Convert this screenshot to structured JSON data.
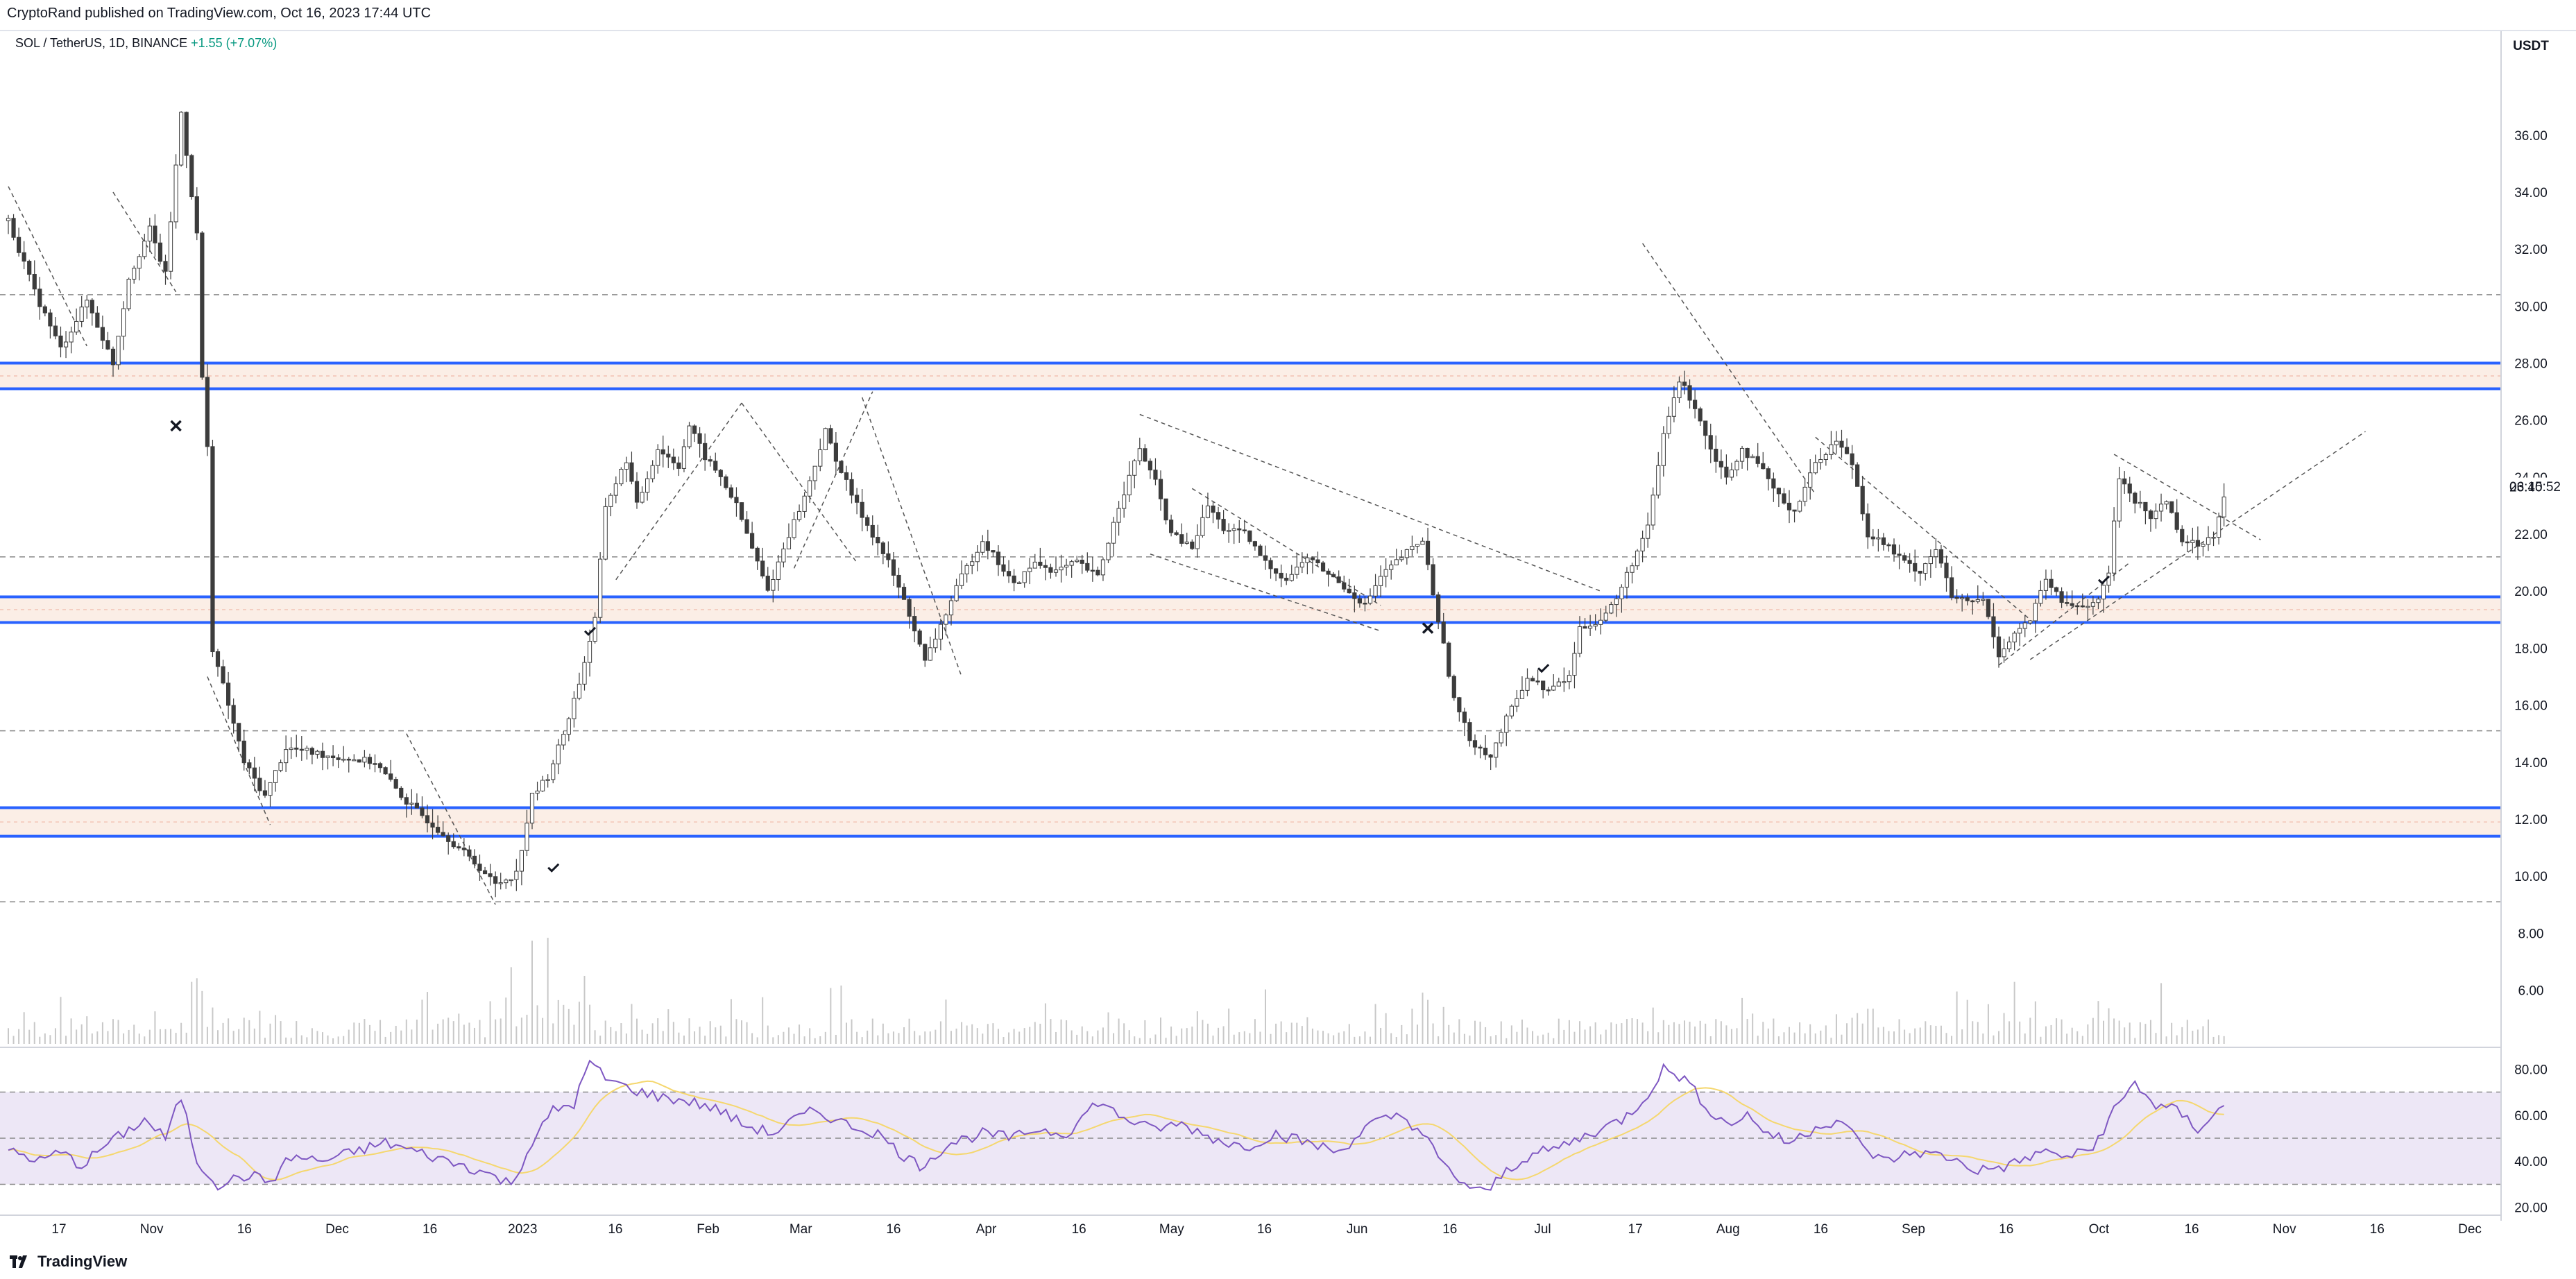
{
  "header": {
    "publish_text": "CryptoRand published on TradingView.com, Oct 16, 2023 17:44 UTC"
  },
  "symbol": {
    "name": "SOL / TetherUS, 1D, BINANCE",
    "change": "+1.55 (+7.07%)"
  },
  "footer": {
    "brand": "TradingView"
  },
  "price_scale": {
    "currency": "USDT",
    "countdown": "06:15:52"
  },
  "colors": {
    "zone_line": "#2962ff",
    "rsi_line": "#7e57c2",
    "rsi_ma": "#f5d76e",
    "rsi_band": "#ede7f6",
    "candle_up": "#ffffff",
    "candle_down": "#3c3c3c",
    "grid_dashed": "#8a8a8a"
  },
  "chart_data": [
    {
      "type": "candlestick",
      "symbol": "SOL / TetherUS",
      "interval": "1D",
      "exchange": "BINANCE",
      "ylim": [
        4.6,
        38.6
      ],
      "y_ticks": [
        "36.00",
        "34.00",
        "32.00",
        "30.00",
        "28.00",
        "26.00",
        "24.00",
        "22.00",
        "20.00",
        "18.00",
        "16.00",
        "14.00",
        "12.00",
        "10.00",
        "8.00",
        "6.00"
      ],
      "x_ticks": [
        "17",
        "Nov",
        "16",
        "Dec",
        "16",
        "2023",
        "16",
        "Feb",
        "Mar",
        "16",
        "Apr",
        "16",
        "May",
        "16",
        "Jun",
        "16",
        "Jul",
        "17",
        "Aug",
        "16",
        "Sep",
        "16",
        "Oct",
        "16",
        "Nov",
        "16",
        "Dec"
      ],
      "current_price": 23.4,
      "path": [
        [
          0,
          33.0
        ],
        [
          5,
          30.5
        ],
        [
          10,
          28.5
        ],
        [
          15,
          30.2
        ],
        [
          20,
          28.0
        ],
        [
          23,
          31.0
        ],
        [
          27,
          32.7
        ],
        [
          30,
          31.1
        ],
        [
          33,
          36.8
        ],
        [
          36,
          32.5
        ],
        [
          37,
          27.5
        ],
        [
          38,
          25.0
        ],
        [
          39,
          18.0
        ],
        [
          42,
          16.0
        ],
        [
          45,
          14.0
        ],
        [
          49,
          12.8
        ],
        [
          53,
          14.5
        ],
        [
          62,
          14.2
        ],
        [
          70,
          14.0
        ],
        [
          76,
          12.6
        ],
        [
          83,
          11.5
        ],
        [
          90,
          10.3
        ],
        [
          93,
          9.7
        ],
        [
          97,
          10.1
        ],
        [
          100,
          12.8
        ],
        [
          103,
          13.5
        ],
        [
          106,
          15.0
        ],
        [
          109,
          16.8
        ],
        [
          112,
          19.0
        ],
        [
          114,
          23.0
        ],
        [
          118,
          24.6
        ],
        [
          120,
          23.0
        ],
        [
          124,
          25.0
        ],
        [
          128,
          24.4
        ],
        [
          130,
          25.8
        ],
        [
          133,
          24.7
        ],
        [
          136,
          24.0
        ],
        [
          139,
          23.0
        ],
        [
          142,
          21.5
        ],
        [
          145,
          20.0
        ],
        [
          149,
          22.0
        ],
        [
          152,
          23.3
        ],
        [
          156,
          25.6
        ],
        [
          159,
          24.2
        ],
        [
          162,
          23.0
        ],
        [
          165,
          22.0
        ],
        [
          168,
          21.0
        ],
        [
          172,
          19.2
        ],
        [
          175,
          17.5
        ],
        [
          178,
          18.8
        ],
        [
          182,
          20.5
        ],
        [
          186,
          21.8
        ],
        [
          189,
          21.0
        ],
        [
          192,
          20.2
        ],
        [
          196,
          21.0
        ],
        [
          200,
          20.7
        ],
        [
          204,
          21.0
        ],
        [
          208,
          20.5
        ],
        [
          212,
          23.0
        ],
        [
          216,
          25.0
        ],
        [
          219,
          23.8
        ],
        [
          222,
          22.0
        ],
        [
          226,
          21.5
        ],
        [
          229,
          23.0
        ],
        [
          232,
          22.2
        ],
        [
          236,
          22.0
        ],
        [
          240,
          21.0
        ],
        [
          244,
          20.4
        ],
        [
          248,
          21.2
        ],
        [
          252,
          20.6
        ],
        [
          256,
          20.0
        ],
        [
          259,
          19.5
        ],
        [
          262,
          20.5
        ],
        [
          266,
          21.2
        ],
        [
          270,
          21.8
        ],
        [
          273,
          19.0
        ],
        [
          276,
          16.2
        ],
        [
          279,
          14.8
        ],
        [
          283,
          14.2
        ],
        [
          286,
          15.5
        ],
        [
          290,
          17.0
        ],
        [
          294,
          16.5
        ],
        [
          298,
          17.0
        ],
        [
          300,
          18.7
        ],
        [
          304,
          19.0
        ],
        [
          307,
          19.7
        ],
        [
          310,
          21.0
        ],
        [
          313,
          22.2
        ],
        [
          316,
          25.5
        ],
        [
          319,
          27.4
        ],
        [
          322,
          26.5
        ],
        [
          325,
          25.0
        ],
        [
          328,
          24.0
        ],
        [
          331,
          25.0
        ],
        [
          335,
          24.2
        ],
        [
          338,
          23.3
        ],
        [
          341,
          22.8
        ],
        [
          345,
          24.5
        ],
        [
          349,
          25.3
        ],
        [
          352,
          24.5
        ],
        [
          355,
          22.0
        ],
        [
          358,
          21.7
        ],
        [
          362,
          21.0
        ],
        [
          365,
          20.7
        ],
        [
          368,
          21.5
        ],
        [
          371,
          19.8
        ],
        [
          374,
          19.6
        ],
        [
          377,
          19.7
        ],
        [
          380,
          17.8
        ],
        [
          383,
          18.5
        ],
        [
          386,
          19.0
        ],
        [
          389,
          20.4
        ],
        [
          392,
          19.6
        ],
        [
          395,
          19.5
        ],
        [
          399,
          19.6
        ],
        [
          401,
          20.7
        ],
        [
          403,
          24.0
        ],
        [
          406,
          23.2
        ],
        [
          409,
          22.6
        ],
        [
          412,
          23.2
        ],
        [
          415,
          21.8
        ],
        [
          418,
          21.6
        ],
        [
          421,
          22.0
        ],
        [
          423,
          23.4
        ]
      ],
      "horizontal_zones": [
        {
          "top": 28.0,
          "bottom": 27.1
        },
        {
          "top": 19.8,
          "bottom": 18.9
        },
        {
          "top": 12.4,
          "bottom": 11.4
        }
      ],
      "dashed_levels": [
        30.4,
        21.2,
        15.1,
        9.1
      ]
    },
    {
      "type": "line",
      "indicator": "RSI",
      "ylim": [
        19.0,
        84.0
      ],
      "y_ticks": [
        "80.00",
        "60.00",
        "40.00",
        "20.00"
      ],
      "upper_band": 70,
      "middle": 50,
      "lower_band": 30,
      "path": [
        [
          0,
          45
        ],
        [
          6,
          40
        ],
        [
          10,
          44
        ],
        [
          14,
          38
        ],
        [
          18,
          46
        ],
        [
          22,
          52
        ],
        [
          26,
          58
        ],
        [
          30,
          50
        ],
        [
          33,
          68
        ],
        [
          36,
          40
        ],
        [
          40,
          30
        ],
        [
          46,
          34
        ],
        [
          50,
          31
        ],
        [
          54,
          42
        ],
        [
          60,
          40
        ],
        [
          66,
          44
        ],
        [
          72,
          48
        ],
        [
          78,
          44
        ],
        [
          84,
          40
        ],
        [
          90,
          36
        ],
        [
          96,
          30
        ],
        [
          100,
          48
        ],
        [
          104,
          62
        ],
        [
          108,
          65
        ],
        [
          111,
          83
        ],
        [
          114,
          76
        ],
        [
          118,
          72
        ],
        [
          124,
          68
        ],
        [
          130,
          66
        ],
        [
          136,
          62
        ],
        [
          140,
          56
        ],
        [
          146,
          52
        ],
        [
          150,
          58
        ],
        [
          154,
          62
        ],
        [
          160,
          56
        ],
        [
          166,
          52
        ],
        [
          170,
          44
        ],
        [
          174,
          38
        ],
        [
          180,
          48
        ],
        [
          186,
          52
        ],
        [
          192,
          50
        ],
        [
          196,
          54
        ],
        [
          202,
          52
        ],
        [
          208,
          66
        ],
        [
          212,
          60
        ],
        [
          218,
          54
        ],
        [
          224,
          56
        ],
        [
          230,
          50
        ],
        [
          236,
          46
        ],
        [
          242,
          52
        ],
        [
          248,
          48
        ],
        [
          254,
          44
        ],
        [
          260,
          56
        ],
        [
          266,
          60
        ],
        [
          270,
          52
        ],
        [
          274,
          38
        ],
        [
          278,
          30
        ],
        [
          282,
          26
        ],
        [
          286,
          36
        ],
        [
          290,
          42
        ],
        [
          296,
          46
        ],
        [
          302,
          52
        ],
        [
          308,
          58
        ],
        [
          312,
          66
        ],
        [
          316,
          80
        ],
        [
          320,
          76
        ],
        [
          324,
          64
        ],
        [
          328,
          56
        ],
        [
          332,
          60
        ],
        [
          336,
          52
        ],
        [
          340,
          48
        ],
        [
          346,
          56
        ],
        [
          350,
          58
        ],
        [
          354,
          46
        ],
        [
          358,
          40
        ],
        [
          364,
          44
        ],
        [
          370,
          42
        ],
        [
          376,
          36
        ],
        [
          382,
          38
        ],
        [
          388,
          44
        ],
        [
          394,
          42
        ],
        [
          398,
          46
        ],
        [
          402,
          62
        ],
        [
          406,
          74
        ],
        [
          410,
          64
        ],
        [
          414,
          62
        ],
        [
          418,
          54
        ],
        [
          423,
          64
        ]
      ]
    }
  ]
}
